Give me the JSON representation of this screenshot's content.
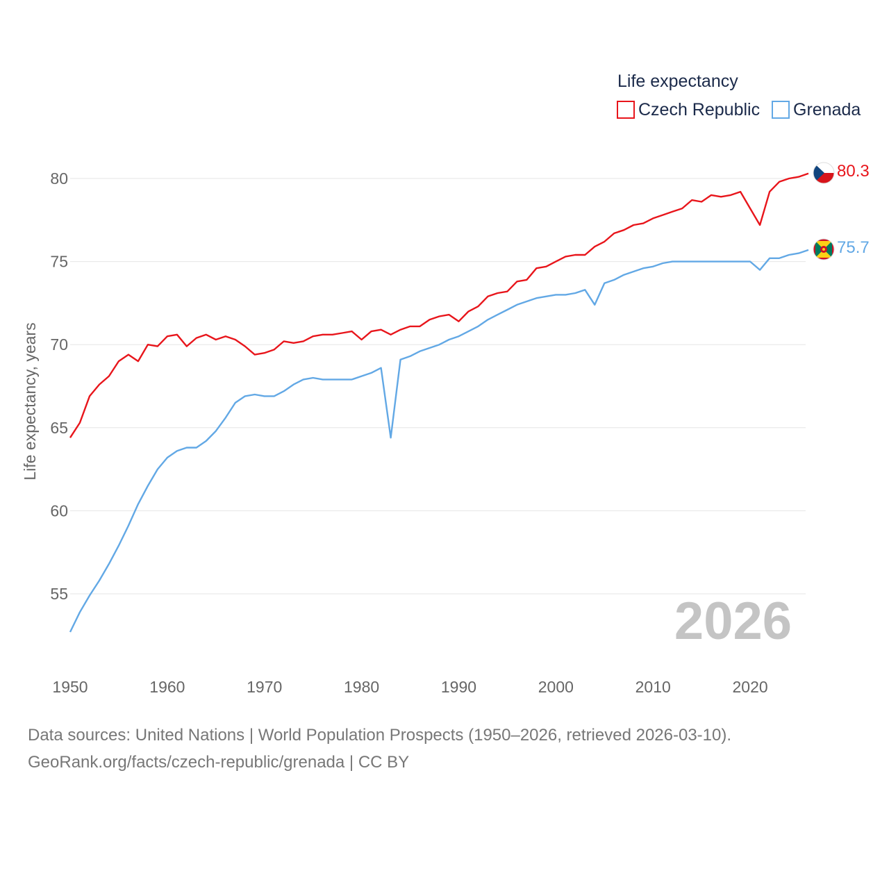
{
  "chart_data": {
    "type": "line",
    "legend_title": "Life expectancy",
    "legend_position": "top-right",
    "ylabel": "Life expectancy, years",
    "xlabel": "",
    "xlim": [
      1950,
      2026
    ],
    "ylim": [
      51.5,
      82
    ],
    "x_ticks": [
      1950,
      1960,
      1970,
      1980,
      1990,
      2000,
      2010,
      2020
    ],
    "y_ticks": [
      55,
      60,
      65,
      70,
      75,
      80
    ],
    "grid": true,
    "year_label": "2026",
    "x": [
      1950,
      1951,
      1952,
      1953,
      1954,
      1955,
      1956,
      1957,
      1958,
      1959,
      1960,
      1961,
      1962,
      1963,
      1964,
      1965,
      1966,
      1967,
      1968,
      1969,
      1970,
      1971,
      1972,
      1973,
      1974,
      1975,
      1976,
      1977,
      1978,
      1979,
      1980,
      1981,
      1982,
      1983,
      1984,
      1985,
      1986,
      1987,
      1988,
      1989,
      1990,
      1991,
      1992,
      1993,
      1994,
      1995,
      1996,
      1997,
      1998,
      1999,
      2000,
      2001,
      2002,
      2003,
      2004,
      2005,
      2006,
      2007,
      2008,
      2009,
      2010,
      2011,
      2012,
      2013,
      2014,
      2015,
      2016,
      2017,
      2018,
      2019,
      2020,
      2021,
      2022,
      2023,
      2024,
      2025,
      2026
    ],
    "series": [
      {
        "name": "Czech Republic",
        "color": "#e8151b",
        "end_label": "80.3",
        "flag": "czech-republic",
        "values": [
          64.4,
          65.3,
          66.9,
          67.6,
          68.1,
          69.0,
          69.4,
          69.0,
          70.0,
          69.9,
          70.5,
          70.6,
          69.9,
          70.4,
          70.6,
          70.3,
          70.5,
          70.3,
          69.9,
          69.4,
          69.5,
          69.7,
          70.2,
          70.1,
          70.2,
          70.5,
          70.6,
          70.6,
          70.7,
          70.8,
          70.3,
          70.8,
          70.9,
          70.6,
          70.9,
          71.1,
          71.1,
          71.5,
          71.7,
          71.8,
          71.4,
          72.0,
          72.3,
          72.9,
          73.1,
          73.2,
          73.8,
          73.9,
          74.6,
          74.7,
          75.0,
          75.3,
          75.4,
          75.4,
          75.9,
          76.2,
          76.7,
          76.9,
          77.2,
          77.3,
          77.6,
          77.8,
          78.0,
          78.2,
          78.7,
          78.6,
          79.0,
          78.9,
          79.0,
          79.2,
          78.2,
          77.2,
          79.2,
          79.8,
          80.0,
          80.1,
          80.3
        ]
      },
      {
        "name": "Grenada",
        "color": "#62a8e5",
        "end_label": "75.7",
        "flag": "grenada",
        "values": [
          52.7,
          53.9,
          54.9,
          55.8,
          56.8,
          57.9,
          59.1,
          60.4,
          61.5,
          62.5,
          63.2,
          63.6,
          63.8,
          63.8,
          64.2,
          64.8,
          65.6,
          66.5,
          66.9,
          67.0,
          66.9,
          66.9,
          67.2,
          67.6,
          67.9,
          68.0,
          67.9,
          67.9,
          67.9,
          67.9,
          68.1,
          68.3,
          68.6,
          64.4,
          69.1,
          69.3,
          69.6,
          69.8,
          70.0,
          70.3,
          70.5,
          70.8,
          71.1,
          71.5,
          71.8,
          72.1,
          72.4,
          72.6,
          72.8,
          72.9,
          73.0,
          73.0,
          73.1,
          73.3,
          72.4,
          73.7,
          73.9,
          74.2,
          74.4,
          74.6,
          74.7,
          74.9,
          75.0,
          75.0,
          75.0,
          75.0,
          75.0,
          75.0,
          75.0,
          75.0,
          75.0,
          74.5,
          75.2,
          75.2,
          75.4,
          75.5,
          75.7
        ]
      }
    ]
  },
  "footer": {
    "source_line": "Data sources: United Nations | World Population Prospects (1950–2026, retrieved 2026-03-10).",
    "url_line": "GeoRank.org/facts/czech-republic/grenada | CC BY"
  }
}
